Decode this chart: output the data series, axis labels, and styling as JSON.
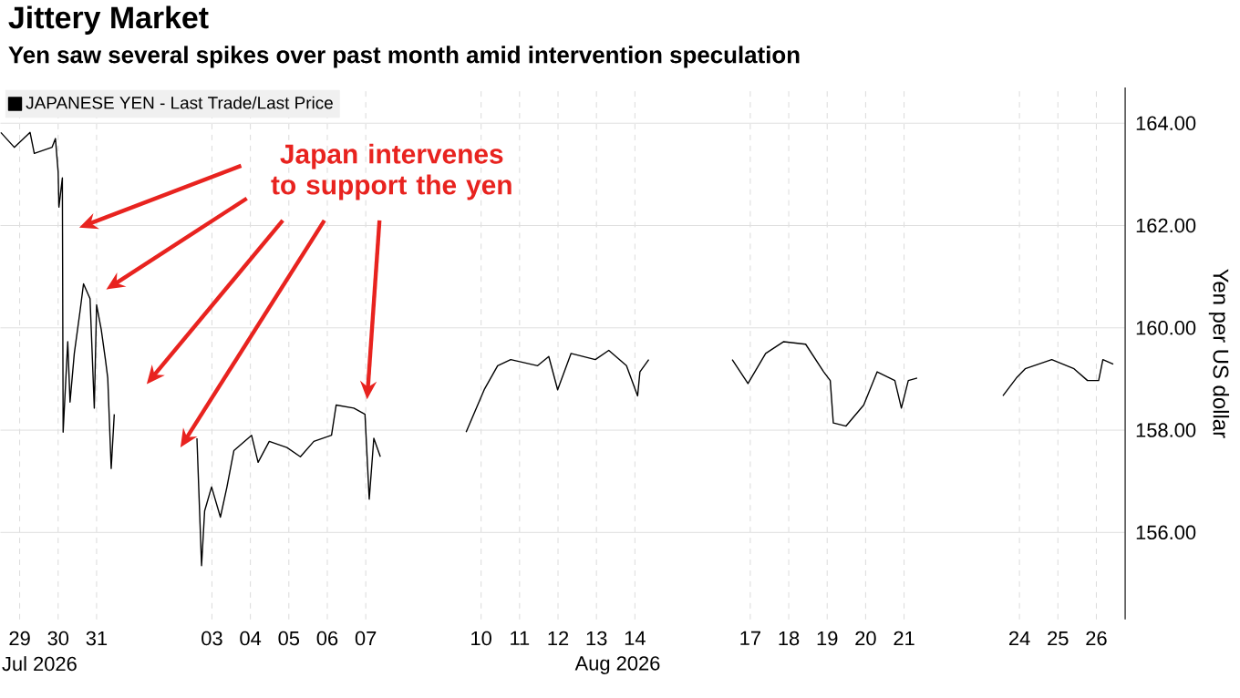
{
  "chart_data": {
    "type": "line",
    "title": "Jittery Market",
    "subtitle": "Yen saw several spikes over past month amid intervention speculation",
    "ylabel": "Yen per US dollar",
    "annotations": [
      "Japan intervenes to support the yen",
      "Jul 2026",
      "Aug 2026"
    ],
    "x": [
      "2026-07-29T00:14",
      "2026-07-29T08:38",
      "2026-07-29T18:29",
      "2026-07-29T21:07",
      "2026-07-30T08:10",
      "2026-07-30T10:19",
      "2026-07-30T12:00",
      "2026-07-30T12:29",
      "2026-07-30T14:38",
      "2026-07-30T15:07",
      "2026-07-30T18:00",
      "2026-07-30T19:26",
      "2026-07-30T22:05",
      "2026-07-31T01:41",
      "2026-07-31T03:50",
      "2026-07-31T07:55",
      "2026-07-31T10:34",
      "2026-07-31T12:00",
      "2026-07-31T14:53",
      "2026-07-31T17:31",
      "2026-07-31T18:58",
      "2026-07-31T21:07",
      "2026-07-31T23:02",
      "2026-08-01T12:00",
      "2026-08-03T02:38",
      "2026-08-03T05:31",
      "2026-08-03T07:26",
      "2026-08-03T11:46",
      "2026-08-03T17:17",
      "2026-08-03T21:22",
      "2026-08-04T01:41",
      "2026-08-04T12:43",
      "2026-08-04T16:48",
      "2026-08-04T23:46",
      "2026-08-05T10:48",
      "2026-08-05T19:12",
      "2026-08-06T03:36",
      "2026-08-06T14:38",
      "2026-08-06T17:31",
      "2026-08-07T04:34",
      "2026-08-07T11:31",
      "2026-08-07T14:10",
      "2026-08-07T17:02",
      "2026-08-07T21:07",
      "2026-08-08T12:00",
      "2026-08-10T02:38",
      "2026-08-10T13:55",
      "2026-08-10T22:19",
      "2026-08-11T06:29",
      "2026-08-11T23:17",
      "2026-08-12T06:14",
      "2026-08-12T11:46",
      "2026-08-12T20:10",
      "2026-08-13T11:17",
      "2026-08-13T19:41",
      "2026-08-14T06:43",
      "2026-08-14T13:41",
      "2026-08-14T15:07",
      "2026-08-14T20:38",
      "2026-08-15T12:00",
      "2026-08-17T00:43",
      "2026-08-17T10:34",
      "2026-08-17T21:36",
      "2026-08-18T08:53",
      "2026-08-18T22:34",
      "2026-08-19T09:50",
      "2026-08-19T13:55",
      "2026-08-19T15:50",
      "2026-08-19T23:46",
      "2026-08-20T10:48",
      "2026-08-20T19:12",
      "2026-08-21T06:14",
      "2026-08-21T10:19",
      "2026-08-21T14:38",
      "2026-08-21T20:10",
      "2026-08-22T12:00",
      "2026-08-24T01:41",
      "2026-08-24T10:05",
      "2026-08-24T15:36",
      "2026-08-25T08:10",
      "2026-08-25T22:05",
      "2026-08-26T06:29",
      "2026-08-26T13:26",
      "2026-08-26T16:05",
      "2026-08-26T22:34"
    ],
    "series": [
      {
        "name": "JAPANESE YEN - Last Trade/Last Price",
        "color": "#000000",
        "values": [
          163.82,
          163.53,
          163.82,
          163.41,
          163.53,
          163.7,
          163.05,
          162.36,
          162.93,
          157.96,
          159.73,
          158.55,
          159.5,
          160.33,
          160.86,
          160.57,
          158.43,
          160.45,
          159.97,
          159.38,
          159.02,
          157.25,
          158.31,
          null,
          157.84,
          155.35,
          156.42,
          156.89,
          156.3,
          156.89,
          157.6,
          157.9,
          157.37,
          157.78,
          157.66,
          157.48,
          157.78,
          157.9,
          158.49,
          158.43,
          158.31,
          156.65,
          157.84,
          157.48,
          null,
          157.96,
          158.79,
          159.26,
          159.38,
          159.26,
          159.44,
          158.79,
          159.5,
          159.38,
          159.56,
          159.26,
          158.67,
          159.14,
          159.38,
          null,
          159.38,
          158.91,
          159.5,
          159.73,
          159.68,
          159.14,
          158.97,
          158.14,
          158.08,
          158.49,
          159.14,
          158.97,
          158.43,
          158.97,
          159.02,
          null,
          158.67,
          159.02,
          159.2,
          159.38,
          159.2,
          158.97,
          158.97,
          159.38,
          159.29
        ]
      }
    ],
    "xlim": [
      "2026-07-29T00:00",
      "2026-08-27T06:00"
    ],
    "ylim": [
      154.3,
      164.7
    ],
    "xticks": [
      {
        "value": "2026-07-29T12:00",
        "label": "29"
      },
      {
        "value": "2026-07-30T12:00",
        "label": "30"
      },
      {
        "value": "2026-07-31T12:00",
        "label": "31"
      },
      {
        "value": "2026-08-03T12:00",
        "label": "03"
      },
      {
        "value": "2026-08-04T12:00",
        "label": "04"
      },
      {
        "value": "2026-08-05T12:00",
        "label": "05"
      },
      {
        "value": "2026-08-06T12:00",
        "label": "06"
      },
      {
        "value": "2026-08-07T12:00",
        "label": "07"
      },
      {
        "value": "2026-08-10T12:00",
        "label": "10"
      },
      {
        "value": "2026-08-11T12:00",
        "label": "11"
      },
      {
        "value": "2026-08-12T12:00",
        "label": "12"
      },
      {
        "value": "2026-08-13T12:00",
        "label": "13"
      },
      {
        "value": "2026-08-14T12:00",
        "label": "14"
      },
      {
        "value": "2026-08-17T12:00",
        "label": "17"
      },
      {
        "value": "2026-08-18T12:00",
        "label": "18"
      },
      {
        "value": "2026-08-19T12:00",
        "label": "19"
      },
      {
        "value": "2026-08-20T12:00",
        "label": "20"
      },
      {
        "value": "2026-08-21T12:00",
        "label": "21"
      },
      {
        "value": "2026-08-24T12:00",
        "label": "24"
      },
      {
        "value": "2026-08-25T12:00",
        "label": "25"
      },
      {
        "value": "2026-08-26T12:00",
        "label": "26"
      }
    ],
    "yticks": [
      {
        "value": 156,
        "label": "156.00"
      },
      {
        "value": 158,
        "label": "158.00"
      },
      {
        "value": 160,
        "label": "160.00"
      },
      {
        "value": 162,
        "label": "162.00"
      },
      {
        "value": 164,
        "label": "164.00"
      }
    ],
    "grid": true,
    "legend": "top left"
  }
}
